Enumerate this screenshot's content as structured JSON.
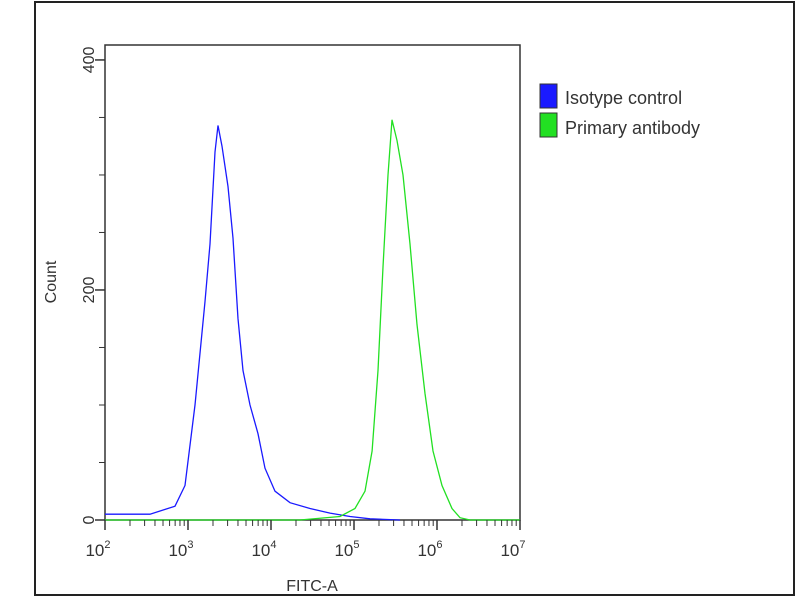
{
  "chart_data": {
    "type": "line",
    "title": "",
    "xlabel": "FITC-A",
    "ylabel": "Count",
    "x_scale": "log",
    "xlim": [
      100,
      10000000
    ],
    "ylim": [
      0,
      413
    ],
    "x_ticks": [
      {
        "base": "10",
        "exp": "2",
        "value": 100
      },
      {
        "base": "10",
        "exp": "3",
        "value": 1000
      },
      {
        "base": "10",
        "exp": "4",
        "value": 10000
      },
      {
        "base": "10",
        "exp": "5",
        "value": 100000
      },
      {
        "base": "10",
        "exp": "6",
        "value": 1000000
      },
      {
        "base": "10",
        "exp": "7",
        "value": 10000000
      }
    ],
    "y_ticks": [
      {
        "label": "0",
        "value": 0
      },
      {
        "label": "200",
        "value": 200
      },
      {
        "label": "400",
        "value": 400
      }
    ],
    "y_minor_step": 50,
    "grid": false,
    "legend_position": "right",
    "series": [
      {
        "name": "Isotype control",
        "color": "#1a1aff",
        "x": [
          100,
          348,
          697,
          920,
          1213,
          1603,
          1841,
          2114,
          2297,
          2570,
          3035,
          3484,
          4000,
          4600,
          5585,
          6970,
          8470,
          11170,
          16940,
          29500,
          51400,
          89500,
          156000,
          358000
        ],
        "y": [
          5,
          5,
          12,
          30,
          100,
          190,
          240,
          320,
          343,
          325,
          290,
          245,
          175,
          130,
          100,
          75,
          45,
          25,
          15,
          10,
          6,
          3,
          1,
          0
        ]
      },
      {
        "name": "Primary antibody",
        "color": "#22e022",
        "x": [
          100,
          22300,
          67800,
          102800,
          135800,
          165000,
          194700,
          223600,
          256900,
          287300,
          329800,
          389300,
          472700,
          574300,
          716800,
          895000,
          1148000,
          1516000,
          1893000,
          2500000,
          10000000
        ],
        "y": [
          0,
          0,
          3,
          10,
          25,
          60,
          130,
          220,
          300,
          348,
          330,
          300,
          240,
          170,
          110,
          60,
          30,
          10,
          2,
          0,
          0
        ]
      }
    ]
  }
}
